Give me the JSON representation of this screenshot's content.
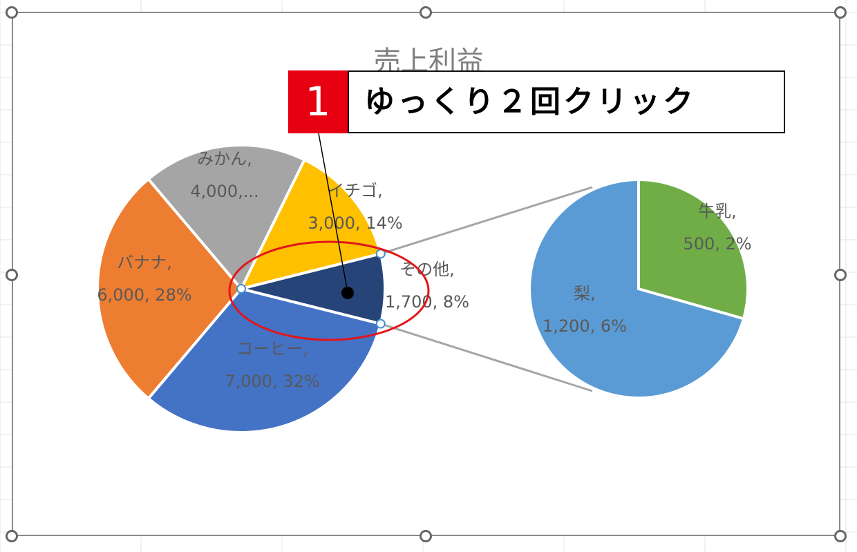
{
  "chart_data": {
    "type": "pie-of-pie",
    "title": "売上利益",
    "main_pie": [
      {
        "name": "コーヒー",
        "value": 7000,
        "label_line1": "コーヒー,",
        "label_line2": "7,000, 32%",
        "color": "#4472c4"
      },
      {
        "name": "バナナ",
        "value": 6000,
        "label_line1": "バナナ,",
        "label_line2": "6,000, 28%",
        "color": "#ed7d31"
      },
      {
        "name": "みかん",
        "value": 4000,
        "label_line1": "みかん,",
        "label_line2": "4,000,...",
        "color": "#a5a5a5"
      },
      {
        "name": "イチゴ",
        "value": 3000,
        "label_line1": "イチゴ,",
        "label_line2": "3,000, 14%",
        "color": "#ffc000"
      },
      {
        "name": "その他",
        "value": 1700,
        "label_line1": "その他,",
        "label_line2": "1,700, 8%",
        "color": "#264478",
        "selected": true
      }
    ],
    "secondary_pie": [
      {
        "name": "梨",
        "value": 1200,
        "label_line1": "梨,",
        "label_line2": "1,200, 6%",
        "color": "#5b9bd5"
      },
      {
        "name": "牛乳",
        "value": 500,
        "label_line1": "牛乳,",
        "label_line2": "500, 2%",
        "color": "#70ad47"
      }
    ],
    "connector_color": "#a6a6a6"
  },
  "annotation": {
    "step_number": "1",
    "instruction": "ゆっくり２回クリック",
    "badge_color": "#e60012",
    "ellipse_color": "#e3151a"
  }
}
